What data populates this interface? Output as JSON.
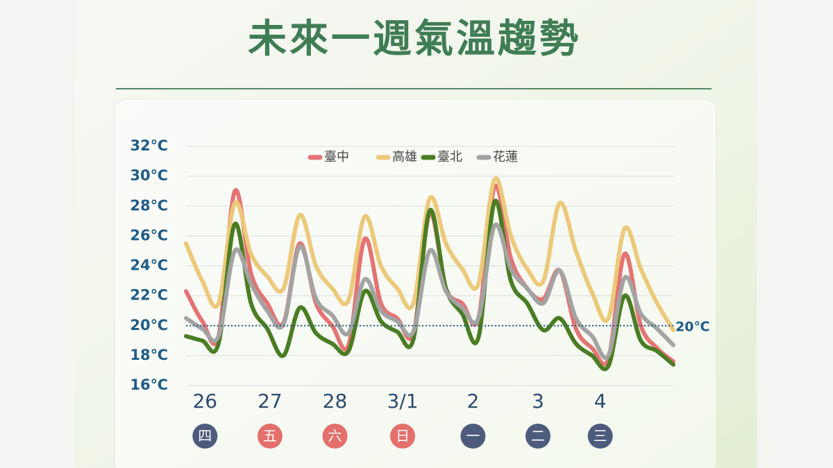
{
  "chart_data": {
    "type": "line",
    "title": "未來一週氣溫趨勢",
    "x": [
      0,
      6,
      12,
      18,
      24,
      30,
      36,
      42,
      48,
      54,
      60,
      66,
      72,
      78,
      84,
      90,
      96,
      102,
      108,
      114,
      120,
      126,
      132,
      138,
      144,
      150,
      156,
      162,
      168,
      174,
      180
    ],
    "xlim": [
      0,
      180
    ],
    "xticks": [
      {
        "value": 7,
        "label": "26"
      },
      {
        "value": 31,
        "label": "27"
      },
      {
        "value": 55,
        "label": "28"
      },
      {
        "value": 80,
        "label": "3/1"
      },
      {
        "value": 106,
        "label": "2"
      },
      {
        "value": 130,
        "label": "3"
      },
      {
        "value": 153,
        "label": "4"
      }
    ],
    "weekdays": [
      "四",
      "五",
      "六",
      "日",
      "一",
      "二",
      "三"
    ],
    "weekday_colors": [
      "#4d5b7c",
      "#e46f6c",
      "#e46f6c",
      "#e46f6c",
      "#4d5b7c",
      "#4d5b7c",
      "#4d5b7c"
    ],
    "ylim": [
      16,
      32
    ],
    "yticks": [
      {
        "value": 16,
        "label": "16℃"
      },
      {
        "value": 18,
        "label": "18℃"
      },
      {
        "value": 20,
        "label": "20℃"
      },
      {
        "value": 22,
        "label": "22℃"
      },
      {
        "value": 24,
        "label": "24℃"
      },
      {
        "value": 26,
        "label": "26℃"
      },
      {
        "value": 28,
        "label": "28℃"
      },
      {
        "value": 30,
        "label": "30℃"
      },
      {
        "value": 32,
        "label": "32℃"
      }
    ],
    "grid": true,
    "legend": "top",
    "reference_line": {
      "value": 20,
      "label": "20℃"
    },
    "series": [
      {
        "name": "臺中",
        "color": "#e57373",
        "values": [
          22.3,
          20.3,
          19.3,
          29,
          23.5,
          21.5,
          20.2,
          25.5,
          21.5,
          20,
          18.7,
          25.8,
          21.5,
          20.5,
          19.5,
          27.5,
          22.5,
          21.5,
          20.5,
          29.3,
          24.5,
          22.5,
          21.8,
          23.7,
          19.8,
          18.5,
          17.8,
          24.8,
          20,
          18.5,
          17.6
        ]
      },
      {
        "name": "高雄",
        "color": "#ecc97a",
        "values": [
          25.5,
          23,
          21.5,
          28.2,
          24.8,
          23.3,
          22.5,
          27.4,
          24,
          22.5,
          21.7,
          27.3,
          24,
          22.5,
          21.5,
          28.5,
          25.5,
          23.8,
          22.8,
          29.8,
          26,
          23.8,
          23,
          28.2,
          25,
          22.2,
          20.5,
          26.5,
          23.8,
          21.5,
          19.7
        ]
      },
      {
        "name": "臺北",
        "color": "#4a7d23",
        "values": [
          19.3,
          19,
          18.8,
          26.8,
          21.5,
          19.8,
          18,
          21.2,
          19.5,
          18.8,
          18.3,
          22.3,
          20.3,
          19.6,
          19.1,
          27.7,
          22.5,
          20.8,
          19.2,
          28.3,
          23,
          21.5,
          19.7,
          20.5,
          18.8,
          18,
          17.3,
          22,
          19,
          18.3,
          17.4
        ]
      },
      {
        "name": "花蓮",
        "color": "#a3a3a3",
        "values": [
          20.5,
          19.8,
          19.3,
          25,
          22.8,
          21,
          20.1,
          25.3,
          21.8,
          20.7,
          19.5,
          23.1,
          21,
          20.3,
          19.6,
          25,
          22.3,
          21.2,
          20.5,
          26.7,
          23.8,
          22.5,
          21.5,
          23.7,
          20.5,
          19.3,
          18,
          23.2,
          20.8,
          19.8,
          18.7
        ]
      }
    ]
  }
}
